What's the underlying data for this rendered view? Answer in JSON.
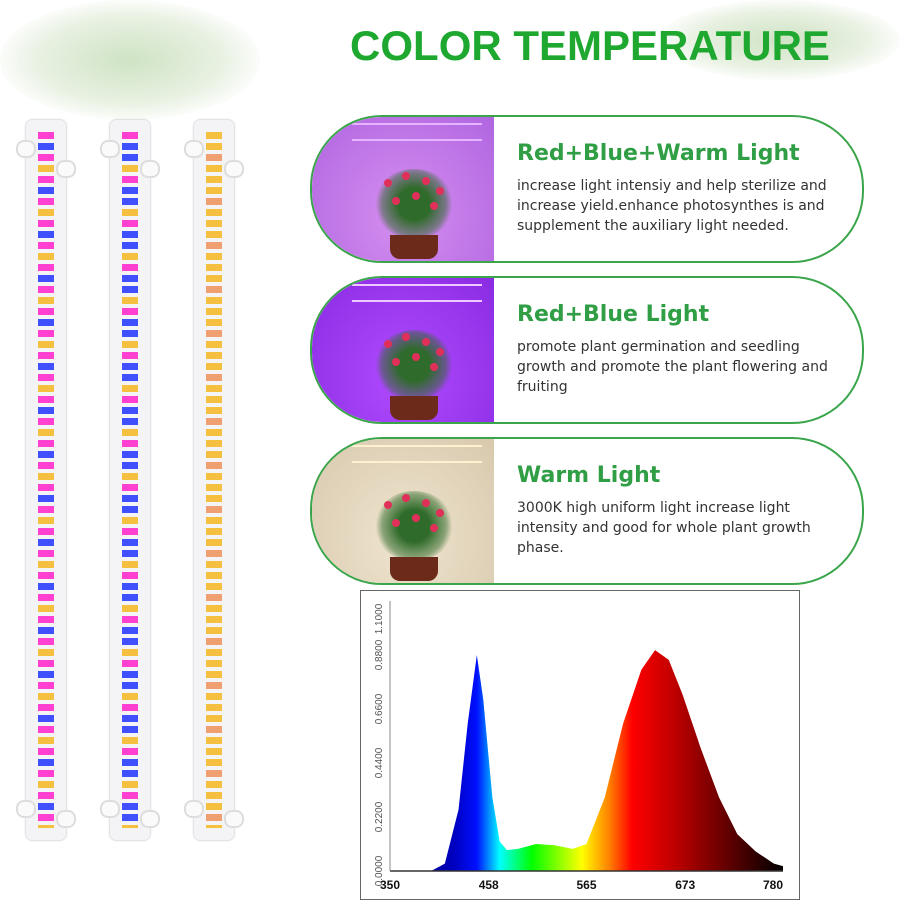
{
  "title": "COLOR TEMPERATURE",
  "panels": [
    {
      "heading": "Red+Blue+Warm Light",
      "text": "increase light intensiy and help sterilize and increase yield.enhance photosynthes is and supplement the auxiliary light needed.",
      "bg": [
        "#b065e0",
        "#d58ef0"
      ],
      "lamp": "#e6b3ff"
    },
    {
      "heading": "Red+Blue Light",
      "text": "promote plant germination and seedling growth and promote the plant flowering and fruiting",
      "bg": [
        "#8a2be2",
        "#b04bff"
      ],
      "lamp": "#f0c8ff"
    },
    {
      "heading": "Warm Light",
      "text": "3000K high uniform light increase light intensity and good for whole plant growth phase.",
      "bg": [
        "#d8c9ad",
        "#efe4cf"
      ],
      "lamp": "#fff1d0"
    }
  ],
  "strips": [
    {
      "colors": [
        "#ff40d0",
        "#4050ff",
        "#ff40d0",
        "#f5c040"
      ]
    },
    {
      "colors": [
        "#ff40d0",
        "#4050ff",
        "#4050ff",
        "#f5c040"
      ]
    },
    {
      "colors": [
        "#f5c040",
        "#f5c040",
        "#f0a070",
        "#f5c040"
      ]
    }
  ],
  "chart_data": {
    "type": "area",
    "xlim": [
      350,
      780
    ],
    "ylim": [
      0,
      1.1
    ],
    "x_ticks": [
      "350",
      "458",
      "565",
      "673",
      "780"
    ],
    "y_ticks": [
      "0.0000",
      "0.2200",
      "0.4400",
      "0.6600",
      "0.8800",
      "1.1000"
    ],
    "x": [
      350,
      395,
      410,
      425,
      435,
      445,
      452,
      462,
      470,
      478,
      490,
      510,
      530,
      550,
      565,
      585,
      605,
      625,
      640,
      655,
      670,
      690,
      710,
      730,
      750,
      770,
      780
    ],
    "y": [
      0,
      0,
      0.03,
      0.25,
      0.6,
      0.88,
      0.7,
      0.3,
      0.12,
      0.085,
      0.09,
      0.11,
      0.105,
      0.09,
      0.11,
      0.3,
      0.6,
      0.82,
      0.9,
      0.86,
      0.72,
      0.5,
      0.3,
      0.15,
      0.08,
      0.03,
      0.02
    ],
    "grid": false
  }
}
